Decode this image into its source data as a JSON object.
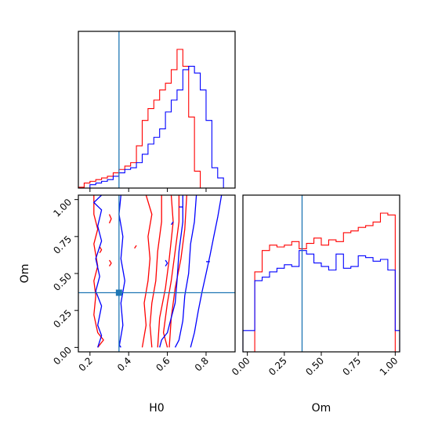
{
  "colors": {
    "red": "#ff0000",
    "blue": "#0000ff",
    "truth": "#1f77b4",
    "axes": "#000000"
  },
  "chart_data": {
    "type": "corner",
    "parameters": [
      "H0",
      "Om"
    ],
    "truths": {
      "H0": 0.35,
      "Om": 0.37
    },
    "axes_ranges": {
      "H0": [
        0.14,
        0.95
      ],
      "Om": [
        -0.03,
        1.03
      ]
    },
    "x_tick_labels": {
      "H0": [
        "0.2",
        "0.4",
        "0.6",
        "0.8"
      ],
      "Om": [
        "0.00",
        "0.25",
        "0.50",
        "0.75",
        "1.00"
      ]
    },
    "y_tick_labels": {
      "Om": [
        "0.00",
        "0.25",
        "0.50",
        "0.75",
        "1.00"
      ]
    },
    "xlabel_bottom_left": "H0",
    "xlabel_bottom_right": "Om",
    "ylabel_left": "Om",
    "grid": false,
    "legend": "none",
    "hist_H0": {
      "bin_edges": [
        0.14,
        0.17,
        0.2,
        0.23,
        0.26,
        0.29,
        0.32,
        0.35,
        0.38,
        0.41,
        0.44,
        0.47,
        0.5,
        0.53,
        0.56,
        0.59,
        0.62,
        0.65,
        0.68,
        0.71,
        0.74,
        0.77,
        0.8,
        0.83,
        0.86,
        0.89,
        0.92
      ],
      "series": [
        {
          "color": "red",
          "values": [
            0.5,
            3,
            4,
            5,
            6,
            7,
            9,
            11,
            13,
            15,
            25,
            40,
            47,
            52,
            58,
            62,
            70,
            82,
            72,
            42,
            10,
            0,
            0,
            0,
            0,
            0
          ]
        },
        {
          "color": "blue",
          "values": [
            0,
            0,
            2,
            3,
            4,
            5,
            7,
            9,
            11,
            12,
            15,
            20,
            26,
            30,
            35,
            45,
            52,
            58,
            70,
            72,
            68,
            58,
            40,
            12,
            6,
            0
          ]
        }
      ]
    },
    "hist_Om": {
      "bin_edges": [
        -0.03,
        0.0,
        0.05,
        0.1,
        0.15,
        0.2,
        0.25,
        0.3,
        0.35,
        0.4,
        0.45,
        0.5,
        0.55,
        0.6,
        0.65,
        0.7,
        0.75,
        0.8,
        0.85,
        0.9,
        0.95,
        1.0,
        1.03
      ],
      "series": [
        {
          "color": "red",
          "values": [
            0,
            0,
            45,
            57,
            60,
            59,
            60,
            62,
            58,
            61,
            64,
            60,
            63,
            62,
            67,
            68,
            70,
            71,
            73,
            78,
            77,
            0
          ]
        },
        {
          "color": "blue",
          "values": [
            12,
            12,
            40,
            42,
            45,
            47,
            49,
            48,
            57,
            55,
            50,
            48,
            46,
            55,
            47,
            48,
            54,
            53,
            51,
            52,
            46,
            12
          ]
        }
      ]
    },
    "contours_2d": [
      {
        "color": "red",
        "paths": [
          [
            [
              0.22,
              1.03
            ],
            [
              0.22,
              0.9
            ],
            [
              0.24,
              0.8
            ],
            [
              0.22,
              0.7
            ],
            [
              0.24,
              0.55
            ],
            [
              0.22,
              0.45
            ],
            [
              0.23,
              0.35
            ],
            [
              0.22,
              0.22
            ],
            [
              0.24,
              0.1
            ],
            [
              0.27,
              0.05
            ],
            [
              0.24,
              0.0
            ]
          ],
          [
            [
              0.49,
              1.03
            ],
            [
              0.52,
              0.9
            ],
            [
              0.5,
              0.75
            ],
            [
              0.51,
              0.6
            ],
            [
              0.5,
              0.45
            ],
            [
              0.48,
              0.3
            ],
            [
              0.49,
              0.15
            ],
            [
              0.47,
              0.0
            ]
          ],
          [
            [
              0.57,
              1.03
            ],
            [
              0.57,
              0.85
            ],
            [
              0.55,
              0.65
            ],
            [
              0.54,
              0.45
            ],
            [
              0.52,
              0.3
            ],
            [
              0.51,
              0.15
            ],
            [
              0.52,
              0.0
            ]
          ],
          [
            [
              0.62,
              1.03
            ],
            [
              0.63,
              0.85
            ],
            [
              0.61,
              0.6
            ],
            [
              0.59,
              0.4
            ],
            [
              0.56,
              0.2
            ],
            [
              0.55,
              0.0
            ]
          ],
          [
            [
              0.66,
              1.03
            ],
            [
              0.66,
              0.85
            ],
            [
              0.64,
              0.65
            ],
            [
              0.62,
              0.45
            ],
            [
              0.6,
              0.3
            ],
            [
              0.58,
              0.1
            ],
            [
              0.6,
              0.0
            ]
          ],
          [
            [
              0.7,
              1.03
            ],
            [
              0.69,
              0.8
            ],
            [
              0.67,
              0.6
            ],
            [
              0.64,
              0.4
            ],
            [
              0.62,
              0.2
            ],
            [
              0.61,
              0.0
            ]
          ],
          [
            [
              0.3,
              0.55
            ],
            [
              0.31,
              0.57
            ],
            [
              0.3,
              0.59
            ]
          ],
          [
            [
              0.25,
              0.64
            ],
            [
              0.26,
              0.66
            ],
            [
              0.25,
              0.68
            ]
          ],
          [
            [
              0.43,
              0.67
            ],
            [
              0.44,
              0.69
            ]
          ],
          [
            [
              0.3,
              0.9
            ],
            [
              0.31,
              0.87
            ],
            [
              0.3,
              0.84
            ]
          ]
        ]
      },
      {
        "color": "blue",
        "paths": [
          [
            [
              0.26,
              1.03
            ],
            [
              0.22,
              0.98
            ],
            [
              0.26,
              0.93
            ],
            [
              0.24,
              0.82
            ],
            [
              0.26,
              0.72
            ],
            [
              0.23,
              0.6
            ],
            [
              0.25,
              0.48
            ],
            [
              0.23,
              0.38
            ],
            [
              0.26,
              0.28
            ],
            [
              0.24,
              0.15
            ],
            [
              0.26,
              0.08
            ],
            [
              0.24,
              0.0
            ]
          ],
          [
            [
              0.36,
              1.03
            ],
            [
              0.35,
              0.9
            ],
            [
              0.37,
              0.75
            ],
            [
              0.36,
              0.6
            ],
            [
              0.38,
              0.45
            ],
            [
              0.36,
              0.3
            ],
            [
              0.37,
              0.15
            ],
            [
              0.35,
              0.0
            ]
          ],
          [
            [
              0.68,
              1.03
            ],
            [
              0.68,
              0.85
            ],
            [
              0.66,
              0.65
            ],
            [
              0.65,
              0.45
            ],
            [
              0.64,
              0.3
            ],
            [
              0.62,
              0.2
            ],
            [
              0.6,
              0.1
            ],
            [
              0.57,
              0.05
            ],
            [
              0.56,
              0.0
            ]
          ],
          [
            [
              0.75,
              1.03
            ],
            [
              0.74,
              0.85
            ],
            [
              0.72,
              0.7
            ],
            [
              0.71,
              0.5
            ],
            [
              0.69,
              0.35
            ],
            [
              0.68,
              0.18
            ],
            [
              0.66,
              0.05
            ],
            [
              0.64,
              0.0
            ]
          ],
          [
            [
              0.88,
              1.03
            ],
            [
              0.86,
              0.88
            ],
            [
              0.84,
              0.75
            ],
            [
              0.82,
              0.62
            ],
            [
              0.8,
              0.5
            ],
            [
              0.78,
              0.38
            ],
            [
              0.76,
              0.25
            ],
            [
              0.74,
              0.1
            ],
            [
              0.72,
              0.0
            ]
          ],
          [
            [
              0.59,
              0.55
            ],
            [
              0.6,
              0.57
            ],
            [
              0.59,
              0.59
            ]
          ],
          [
            [
              0.8,
              0.58
            ],
            [
              0.82,
              0.58
            ]
          ],
          [
            [
              0.62,
              0.83
            ],
            [
              0.63,
              0.85
            ]
          ],
          [
            [
              0.66,
              0.95
            ],
            [
              0.68,
              0.95
            ]
          ],
          [
            [
              0.35,
              0.02
            ],
            [
              0.36,
              0.0
            ]
          ]
        ]
      }
    ]
  }
}
